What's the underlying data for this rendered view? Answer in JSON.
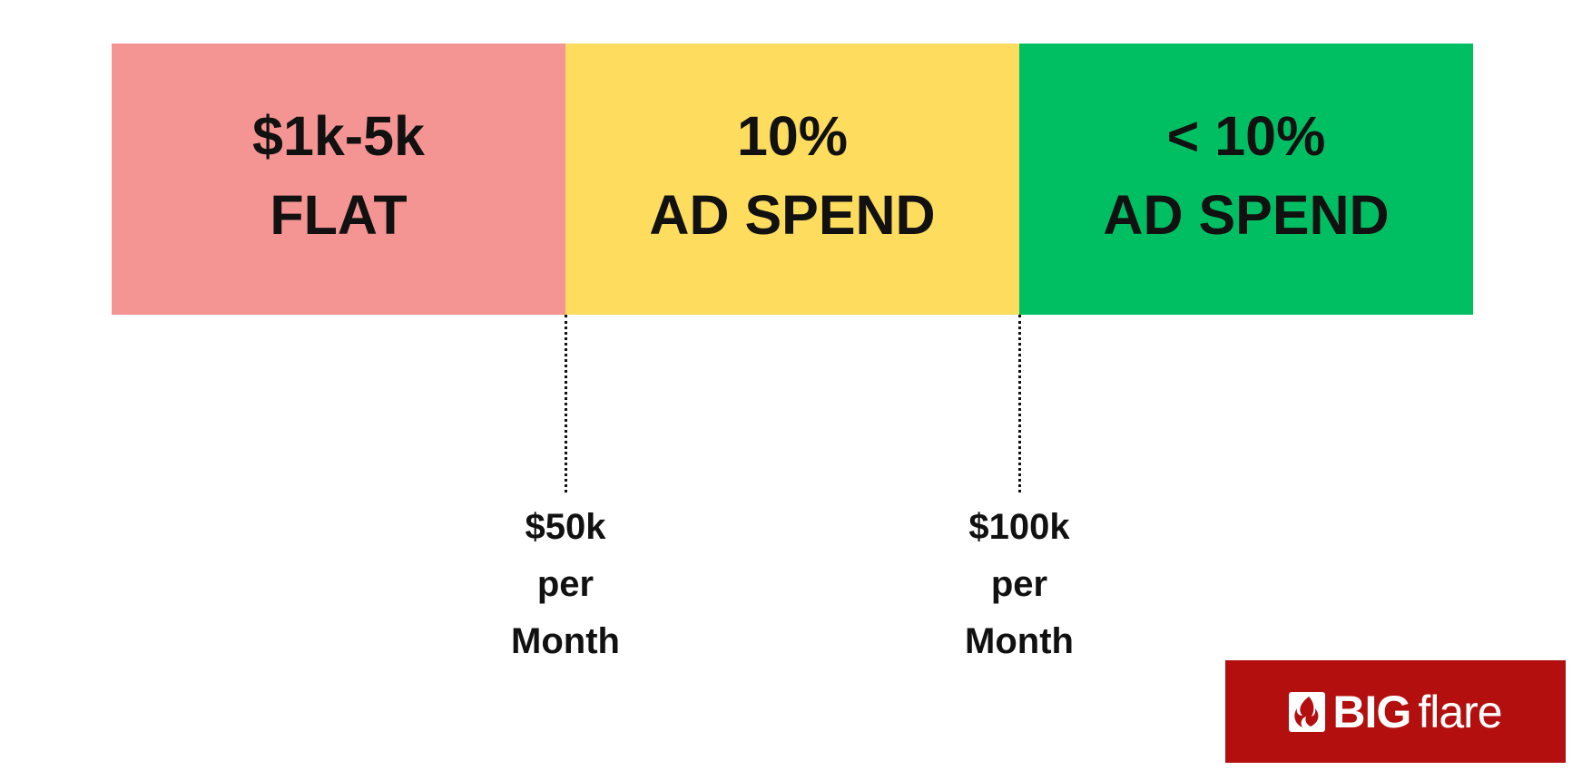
{
  "colors": {
    "tier_low": "#F59593",
    "tier_mid": "#FEDC5E",
    "tier_high": "#00BF63",
    "logo_bg": "#B30F0F"
  },
  "tiers": [
    {
      "line1": "$1k-5k",
      "line2": "FLAT"
    },
    {
      "line1": "10%",
      "line2": "AD SPEND"
    },
    {
      "line1": "< 10%",
      "line2": "AD SPEND"
    }
  ],
  "thresholds": [
    {
      "line1": "$50k",
      "line2": "per",
      "line3": "Month"
    },
    {
      "line1": "$100k",
      "line2": "per",
      "line3": "Month"
    }
  ],
  "logo": {
    "icon": "flame-icon",
    "bold_text": "BIG",
    "light_text": "flare"
  }
}
